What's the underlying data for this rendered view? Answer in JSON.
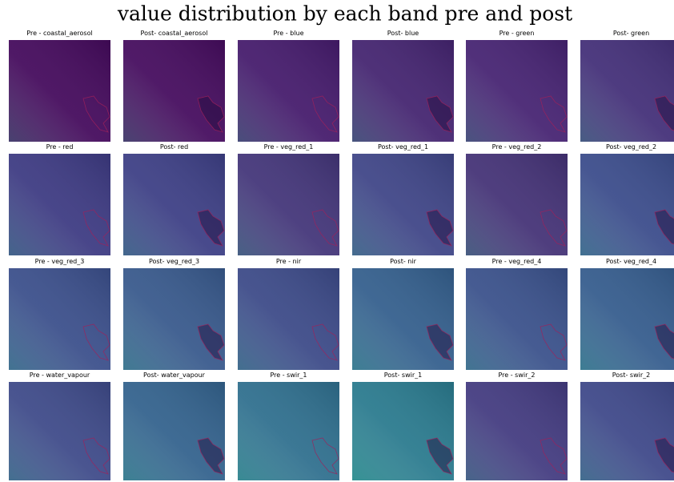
{
  "title": "value distribution by each band pre and post",
  "panels": [
    {
      "title": "Pre - coastal_aerosol"
    },
    {
      "title": "Post- coastal_aerosol"
    },
    {
      "title": "Pre - blue"
    },
    {
      "title": "Post- blue"
    },
    {
      "title": "Pre - green"
    },
    {
      "title": "Post- green"
    },
    {
      "title": "Pre - red"
    },
    {
      "title": "Post- red"
    },
    {
      "title": "Pre - veg_red_1"
    },
    {
      "title": "Post- veg_red_1"
    },
    {
      "title": "Pre - veg_red_2"
    },
    {
      "title": "Post- veg_red_2"
    },
    {
      "title": "Pre - veg_red_3"
    },
    {
      "title": "Post- veg_red_3"
    },
    {
      "title": "Pre - nir"
    },
    {
      "title": "Post- nir"
    },
    {
      "title": "Pre - veg_red_4"
    },
    {
      "title": "Post- veg_red_4"
    },
    {
      "title": "Pre - water_vapour"
    },
    {
      "title": "Post- water_vapour"
    },
    {
      "title": "Pre - swir_1"
    },
    {
      "title": "Post- swir_1"
    },
    {
      "title": "Pre - swir_2"
    },
    {
      "title": "Post- swir_2"
    }
  ]
}
